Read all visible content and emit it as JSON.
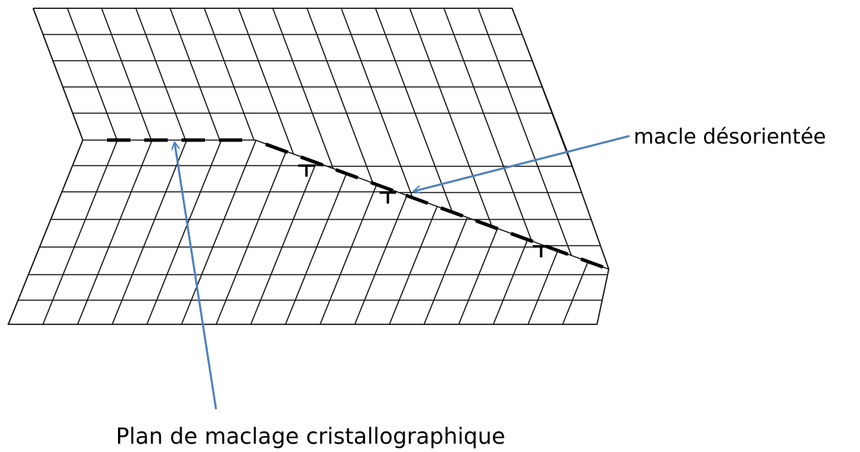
{
  "labels": {
    "misoriented_twin": "macle désorientée",
    "twin_plane": "Plan de maclage cristallographique"
  }
}
